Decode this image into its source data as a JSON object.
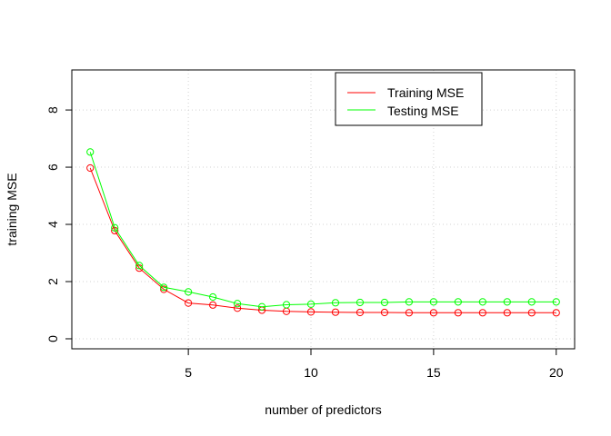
{
  "chart_data": {
    "type": "line",
    "title": "",
    "xlabel": "number of predictors",
    "ylabel": "training MSE",
    "xlim": [
      0.25,
      20.75
    ],
    "ylim": [
      -0.35,
      9.4
    ],
    "x_ticks": [
      5,
      10,
      15,
      20
    ],
    "y_ticks": [
      0,
      2,
      4,
      6,
      8
    ],
    "grid": true,
    "legend_position": "top-right",
    "x": [
      1,
      2,
      3,
      4,
      5,
      6,
      7,
      8,
      9,
      10,
      11,
      12,
      13,
      14,
      15,
      16,
      17,
      18,
      19,
      20
    ],
    "series": [
      {
        "name": "Training MSE",
        "color": "#FF0000",
        "values": [
          5.97,
          3.78,
          2.47,
          1.73,
          1.25,
          1.18,
          1.07,
          1.0,
          0.96,
          0.94,
          0.93,
          0.92,
          0.92,
          0.91,
          0.91,
          0.91,
          0.91,
          0.91,
          0.91,
          0.91
        ]
      },
      {
        "name": "Testing MSE",
        "color": "#00FF00",
        "values": [
          6.53,
          3.88,
          2.56,
          1.8,
          1.64,
          1.46,
          1.23,
          1.12,
          1.19,
          1.21,
          1.26,
          1.27,
          1.27,
          1.29,
          1.29,
          1.29,
          1.29,
          1.29,
          1.29,
          1.29
        ]
      }
    ]
  }
}
